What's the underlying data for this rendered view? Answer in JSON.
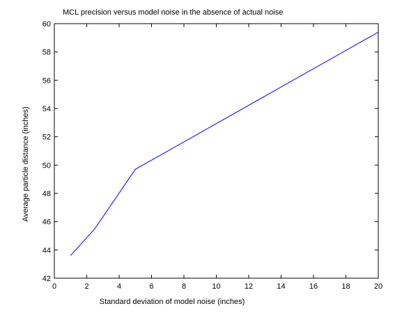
{
  "chart_data": {
    "type": "line",
    "title": "MCL precision versus model noise in the absence of actual noise",
    "xlabel": "Standard deviation of model noise (inches)",
    "ylabel": "Average particle distance (inches)",
    "xlim": [
      0,
      20
    ],
    "ylim": [
      42,
      60
    ],
    "xticks": [
      0,
      2,
      4,
      6,
      8,
      10,
      12,
      14,
      16,
      18,
      20
    ],
    "yticks": [
      42,
      44,
      46,
      48,
      50,
      52,
      54,
      56,
      58,
      60
    ],
    "grid": false,
    "series": [
      {
        "x": [
          1,
          2.5,
          5,
          20
        ],
        "y": [
          43.6,
          45.5,
          49.7,
          59.4
        ]
      }
    ],
    "colors": {
      "line": "#0000ff",
      "axes": "#000000"
    }
  }
}
